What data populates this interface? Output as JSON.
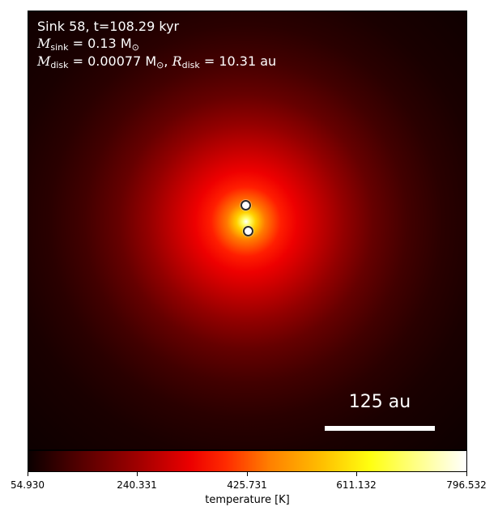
{
  "header": {
    "title": "Sink 58, t=108.29 kyr",
    "msink_symbol": "M",
    "msink_sub": "sink",
    "msink_value": " = 0.13 M",
    "msink_sun": "⊙",
    "mdisk_symbol": "M",
    "mdisk_sub": "disk",
    "mdisk_value": " = 0.00077 M",
    "mdisk_sun": "⊙",
    "mdisk_sep": ", ",
    "rdisk_symbol": "R",
    "rdisk_sub": "disk",
    "rdisk_value": " = 10.31 au"
  },
  "scale_bar": {
    "label": "125 au"
  },
  "colorbar": {
    "label": "temperature [K]",
    "ticks": [
      "54.930",
      "240.331",
      "425.731",
      "611.132",
      "796.532"
    ]
  },
  "sinks": [
    {
      "name": "sink-marker-upper"
    },
    {
      "name": "sink-marker-lower"
    }
  ]
}
